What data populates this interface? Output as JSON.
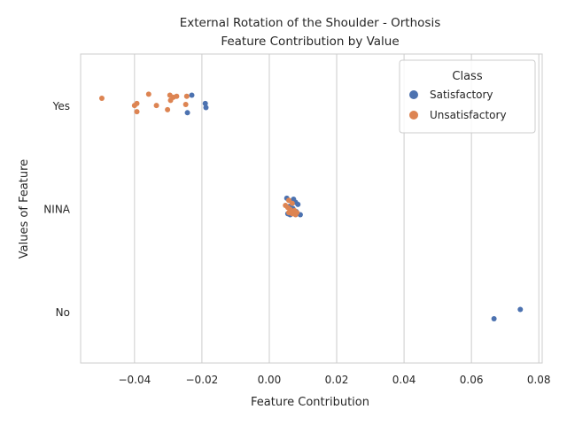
{
  "chart_data": {
    "type": "scatter",
    "title": "External Rotation of the Shoulder - Orthosis",
    "subtitle": "Feature Contribution by Value",
    "xlabel": "Feature Contribution",
    "ylabel": "Values of Feature",
    "xlim": [
      -0.056,
      0.081
    ],
    "x_ticks": [
      -0.04,
      -0.02,
      0.0,
      0.02,
      0.04,
      0.06,
      0.08
    ],
    "x_tick_labels": [
      "−0.04",
      "−0.02",
      "0.00",
      "0.02",
      "0.04",
      "0.06",
      "0.08"
    ],
    "categories": [
      "Yes",
      "NINA",
      "No"
    ],
    "grid": true,
    "legend": {
      "title": "Class",
      "position": "top-right"
    },
    "series": [
      {
        "name": "Satisfactory",
        "color": "#4c72b0",
        "points": [
          {
            "x": -0.023,
            "y": "Yes",
            "j": 0.1
          },
          {
            "x": -0.019,
            "y": "Yes",
            "j": 0.02
          },
          {
            "x": -0.0188,
            "y": "Yes",
            "j": -0.02
          },
          {
            "x": -0.0243,
            "y": "Yes",
            "j": -0.07
          },
          {
            "x": 0.0052,
            "y": "NINA",
            "j": 0.1
          },
          {
            "x": 0.0072,
            "y": "NINA",
            "j": 0.09
          },
          {
            "x": 0.0078,
            "y": "NINA",
            "j": 0.06
          },
          {
            "x": 0.0085,
            "y": "NINA",
            "j": 0.04
          },
          {
            "x": 0.006,
            "y": "NINA",
            "j": 0.02
          },
          {
            "x": 0.007,
            "y": "NINA",
            "j": 0.0
          },
          {
            "x": 0.008,
            "y": "NINA",
            "j": -0.03
          },
          {
            "x": 0.0055,
            "y": "NINA",
            "j": -0.05
          },
          {
            "x": 0.0062,
            "y": "NINA",
            "j": -0.06
          },
          {
            "x": 0.0092,
            "y": "NINA",
            "j": -0.06
          },
          {
            "x": 0.0745,
            "y": "No",
            "j": 0.02
          },
          {
            "x": 0.0667,
            "y": "No",
            "j": -0.07
          }
        ]
      },
      {
        "name": "Unsatisfactory",
        "color": "#dd8452",
        "points": [
          {
            "x": -0.0497,
            "y": "Yes",
            "j": 0.07
          },
          {
            "x": -0.0358,
            "y": "Yes",
            "j": 0.11
          },
          {
            "x": -0.0295,
            "y": "Yes",
            "j": 0.1
          },
          {
            "x": -0.0285,
            "y": "Yes",
            "j": 0.08
          },
          {
            "x": -0.0275,
            "y": "Yes",
            "j": 0.09
          },
          {
            "x": -0.0245,
            "y": "Yes",
            "j": 0.09
          },
          {
            "x": -0.0293,
            "y": "Yes",
            "j": 0.05
          },
          {
            "x": -0.0393,
            "y": "Yes",
            "j": 0.02
          },
          {
            "x": -0.04,
            "y": "Yes",
            "j": 0.0
          },
          {
            "x": -0.0335,
            "y": "Yes",
            "j": 0.0
          },
          {
            "x": -0.0248,
            "y": "Yes",
            "j": 0.01
          },
          {
            "x": -0.0302,
            "y": "Yes",
            "j": -0.04
          },
          {
            "x": -0.0393,
            "y": "Yes",
            "j": -0.06
          },
          {
            "x": 0.0058,
            "y": "NINA",
            "j": 0.08
          },
          {
            "x": 0.0068,
            "y": "NINA",
            "j": 0.05
          },
          {
            "x": 0.0048,
            "y": "NINA",
            "j": 0.03
          },
          {
            "x": 0.0055,
            "y": "NINA",
            "j": 0.01
          },
          {
            "x": 0.0062,
            "y": "NINA",
            "j": -0.01
          },
          {
            "x": 0.0075,
            "y": "NINA",
            "j": -0.02
          },
          {
            "x": 0.0058,
            "y": "NINA",
            "j": -0.04
          },
          {
            "x": 0.0068,
            "y": "NINA",
            "j": -0.05
          },
          {
            "x": 0.0078,
            "y": "NINA",
            "j": -0.06
          },
          {
            "x": 0.0082,
            "y": "NINA",
            "j": -0.04
          }
        ]
      }
    ]
  }
}
